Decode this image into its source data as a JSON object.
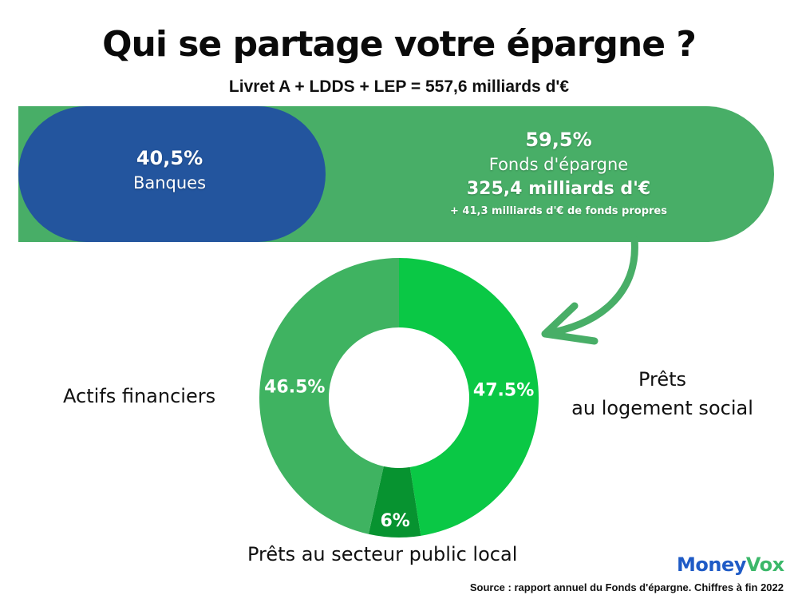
{
  "header": {
    "title": "Qui se partage votre épargne ?",
    "subtitle": "Livret A + LDDS + LEP = 557,6 milliards d'€"
  },
  "split_bar": {
    "banks": {
      "percent": "40,5%",
      "label": "Banques",
      "share": 40.5,
      "color": "#23559e"
    },
    "fund": {
      "percent": "59,5%",
      "label": "Fonds d'épargne",
      "amount": "325,4 milliards d'€",
      "extra": "+ 41,3 milliards d'€ de fonds propres",
      "share": 59.5,
      "color": "#48ae67"
    }
  },
  "labels": {
    "left": "Actifs financiers",
    "right_line1": "Prêts",
    "right_line2": "au logement social",
    "bottom": "Prêts au secteur public local"
  },
  "logo": {
    "part1": "Money",
    "part2": "Vox"
  },
  "source": "Source : rapport annuel du Fonds d'épargne. Chiffres à fin 2022",
  "chart_data": {
    "type": "pie",
    "donut": true,
    "title": "Fonds d'épargne allocation",
    "start": "top",
    "direction": "clockwise",
    "slices": [
      {
        "name": "Prêts au logement social",
        "value": 47.5,
        "label": "47.5%",
        "color": "#0ac845"
      },
      {
        "name": "Prêts au secteur public local",
        "value": 6,
        "label": "6%",
        "color": "#079330"
      },
      {
        "name": "Actifs financiers",
        "value": 46.5,
        "label": "46.5%",
        "color": "#3fb361"
      }
    ],
    "arrow_color": "#48ae67"
  }
}
